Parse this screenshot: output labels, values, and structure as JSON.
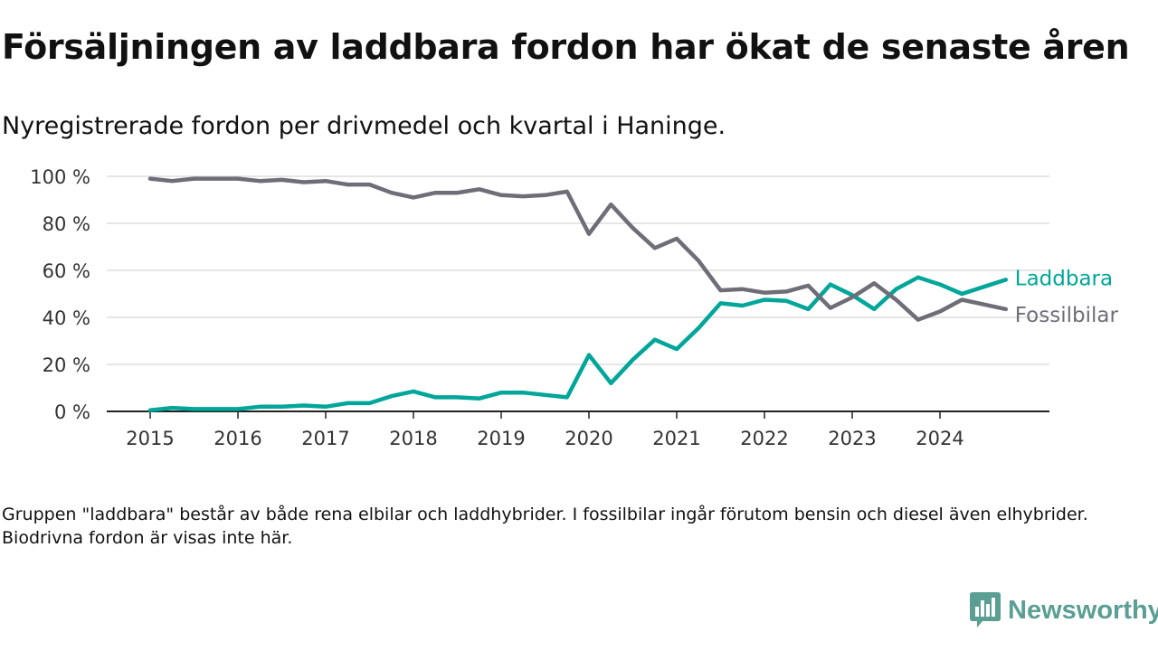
{
  "title": "Försäljningen av laddbara fordon har ökat de senaste åren",
  "subtitle": "Nyregistrerade fordon per drivmedel och kvartal i Haninge.",
  "footnote": "Gruppen \"laddbara\" består av både rena elbilar och laddhybrider. I fossilbilar ingår förutom bensin och diesel även elhybrider. Biodrivna fordon är visas inte här.",
  "brand": {
    "name": "Newsworthy",
    "color": "#5a9e94"
  },
  "chart_data": {
    "type": "line",
    "title": "Försäljningen av laddbara fordon har ökat de senaste åren",
    "xlabel": "",
    "ylabel": "",
    "ylim": [
      0,
      100
    ],
    "yticks": [
      0,
      20,
      40,
      60,
      80,
      100
    ],
    "ytick_labels": [
      "0 %",
      "20 %",
      "40 %",
      "60 %",
      "80 %",
      "100 %"
    ],
    "xticks": [
      2015,
      2016,
      2017,
      2018,
      2019,
      2020,
      2021,
      2022,
      2023,
      2024
    ],
    "xlim": [
      2015,
      2025
    ],
    "grid": true,
    "legend": "inline-right",
    "x_quarter_index_start": "2015 Q1",
    "series": [
      {
        "name": "Laddbara",
        "color": "#00a699",
        "values": [
          0.5,
          1.5,
          1.0,
          1.0,
          1.0,
          2.0,
          2.0,
          2.5,
          2.0,
          3.5,
          3.5,
          6.5,
          8.5,
          6.0,
          6.0,
          5.5,
          8.0,
          8.0,
          7.0,
          6.0,
          24.0,
          12.0,
          22.0,
          30.5,
          26.5,
          35.5,
          46.0,
          45.0,
          47.5,
          47.0,
          43.5,
          54.0,
          49.5,
          43.5,
          52.0,
          57.0,
          54.0,
          50.0,
          53.0,
          56.0
        ]
      },
      {
        "name": "Fossilbilar",
        "color": "#6e6e78",
        "values": [
          99.0,
          98.0,
          99.0,
          99.0,
          99.0,
          98.0,
          98.5,
          97.5,
          98.0,
          96.5,
          96.5,
          93.0,
          91.0,
          93.0,
          93.0,
          94.5,
          92.0,
          91.5,
          92.0,
          93.5,
          75.5,
          88.0,
          78.0,
          69.5,
          73.5,
          64.0,
          51.5,
          52.0,
          50.5,
          51.0,
          53.5,
          44.0,
          48.5,
          54.5,
          47.5,
          39.0,
          42.5,
          47.5,
          45.5,
          43.5
        ]
      }
    ]
  }
}
